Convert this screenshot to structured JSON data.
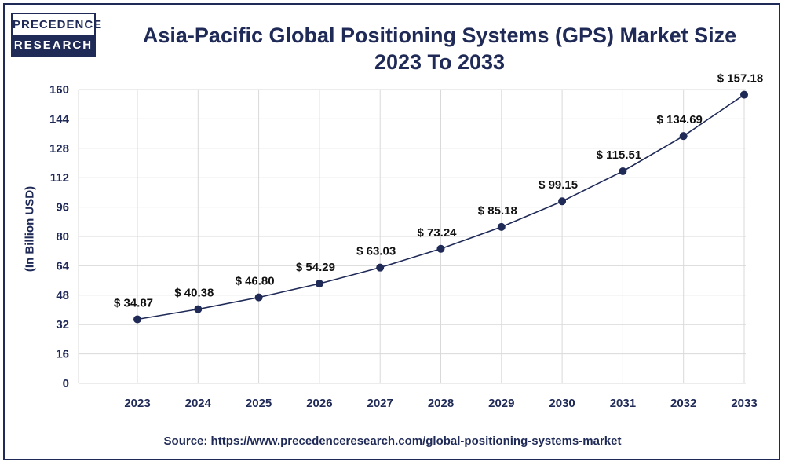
{
  "logo": {
    "line1": "PRECEDENCE",
    "line2": "RESEARCH"
  },
  "title_line1": "Asia-Pacific Global Positioning Systems (GPS) Market Size",
  "title_line2": "2023 To 2033",
  "source": "Source: https://www.precedenceresearch.com/global-positioning-systems-market",
  "colors": {
    "line": "#1f2a57",
    "grid": "#d9d9d9",
    "text": "#1f2a57"
  },
  "chart_data": {
    "type": "line",
    "title": "Asia-Pacific Global Positioning Systems (GPS) Market Size 2023 To 2033",
    "xlabel": "",
    "ylabel": "(In Billion USD)",
    "categories": [
      "2023",
      "2024",
      "2025",
      "2026",
      "2027",
      "2028",
      "2029",
      "2030",
      "2031",
      "2032",
      "2033"
    ],
    "values": [
      34.87,
      40.38,
      46.8,
      54.29,
      63.03,
      73.24,
      85.18,
      99.15,
      115.51,
      134.69,
      157.18
    ],
    "point_labels": [
      "$ 34.87",
      "$ 40.38",
      "$ 46.80",
      "$ 54.29",
      "$ 63.03",
      "$ 73.24",
      "$ 85.18",
      "$ 99.15",
      "$ 115.51",
      "$ 134.69",
      "$ 157.18"
    ],
    "ylim": [
      0,
      160
    ],
    "yticks": [
      0,
      16,
      32,
      48,
      64,
      80,
      96,
      112,
      128,
      144,
      160
    ],
    "grid": true,
    "legend": "none"
  }
}
